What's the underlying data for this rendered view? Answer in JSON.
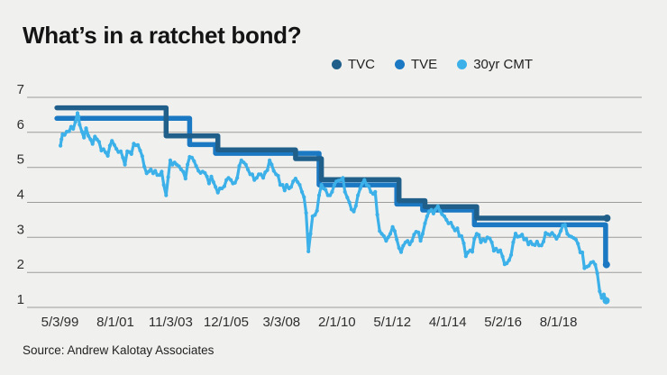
{
  "header": {
    "title": "What’s in a ratchet bond?"
  },
  "legend": {
    "items": [
      {
        "label": "TVC",
        "color": "#1f5f8a"
      },
      {
        "label": "TVE",
        "color": "#1b78c2"
      },
      {
        "label": "30yr CMT",
        "color": "#3cb0e8"
      }
    ]
  },
  "source": {
    "label": "Source: Andrew Kalotay Associates"
  },
  "chart_data": {
    "type": "line",
    "title": "What’s in a ratchet bond?",
    "source": "Source: Andrew Kalotay Associates",
    "xlabel": "",
    "ylabel": "",
    "grid": true,
    "grid_color": "#9c9c9a",
    "legend_position": "top-right",
    "ylim": [
      1,
      7
    ],
    "yticks": [
      7,
      6,
      5,
      4,
      3,
      2,
      1
    ],
    "x_tick_labels": [
      "5/3/99",
      "8/1/01",
      "11/3/03",
      "12/1/05",
      "3/3/08",
      "2/1/10",
      "5/1/12",
      "4/1/14",
      "5/2/16",
      "8/1/18"
    ],
    "x_units": "date (decimal years)",
    "y_units": "percent",
    "series": [
      {
        "name": "TVC",
        "type": "step",
        "color": "#1f5f8a",
        "line_width": 5.5,
        "end": 2020.45,
        "end_dot": true,
        "points": [
          [
            1999.2,
            6.7
          ],
          [
            2003.42,
            5.9
          ],
          [
            2005.42,
            5.5
          ],
          [
            2008.42,
            5.25
          ],
          [
            2009.42,
            4.65
          ],
          [
            2012.42,
            4.05
          ],
          [
            2013.42,
            3.88
          ],
          [
            2015.42,
            3.55
          ]
        ]
      },
      {
        "name": "TVE",
        "type": "step",
        "color": "#1b78c2",
        "line_width": 5.5,
        "end": 2020.43,
        "end_dot": true,
        "points": [
          [
            1999.2,
            6.4
          ],
          [
            2004.33,
            5.65
          ],
          [
            2005.33,
            5.4
          ],
          [
            2009.33,
            4.5
          ],
          [
            2012.33,
            3.95
          ],
          [
            2013.33,
            3.78
          ],
          [
            2015.33,
            3.36
          ],
          [
            2020.4,
            2.22
          ]
        ]
      },
      {
        "name": "30yr CMT",
        "type": "line",
        "color": "#3cb0e8",
        "line_width": 3.2,
        "markers": true,
        "end_dot": true,
        "points": [
          [
            1999.34,
            5.62
          ],
          [
            1999.38,
            5.8
          ],
          [
            1999.42,
            5.95
          ],
          [
            1999.5,
            5.93
          ],
          [
            1999.58,
            6.02
          ],
          [
            1999.67,
            6.03
          ],
          [
            1999.75,
            6.16
          ],
          [
            1999.83,
            6.1
          ],
          [
            1999.92,
            6.3
          ],
          [
            2000.0,
            6.55
          ],
          [
            2000.04,
            6.45
          ],
          [
            2000.08,
            6.22
          ],
          [
            2000.17,
            6.02
          ],
          [
            2000.25,
            5.85
          ],
          [
            2000.33,
            6.12
          ],
          [
            2000.42,
            5.9
          ],
          [
            2000.5,
            5.8
          ],
          [
            2000.58,
            5.67
          ],
          [
            2000.67,
            5.88
          ],
          [
            2000.75,
            5.8
          ],
          [
            2000.83,
            5.73
          ],
          [
            2000.92,
            5.48
          ],
          [
            2001.0,
            5.52
          ],
          [
            2001.08,
            5.43
          ],
          [
            2001.17,
            5.33
          ],
          [
            2001.25,
            5.62
          ],
          [
            2001.33,
            5.76
          ],
          [
            2001.42,
            5.64
          ],
          [
            2001.5,
            5.53
          ],
          [
            2001.58,
            5.44
          ],
          [
            2001.67,
            5.46
          ],
          [
            2001.75,
            5.28
          ],
          [
            2001.83,
            5.08
          ],
          [
            2001.92,
            5.46
          ],
          [
            2002.0,
            5.44
          ],
          [
            2002.08,
            5.38
          ],
          [
            2002.17,
            5.68
          ],
          [
            2002.25,
            5.63
          ],
          [
            2002.33,
            5.64
          ],
          [
            2002.42,
            5.48
          ],
          [
            2002.5,
            5.32
          ],
          [
            2002.58,
            5.02
          ],
          [
            2002.67,
            4.83
          ],
          [
            2002.75,
            4.88
          ],
          [
            2002.83,
            4.94
          ],
          [
            2002.92,
            4.83
          ],
          [
            2003.0,
            4.9
          ],
          [
            2003.08,
            4.78
          ],
          [
            2003.17,
            4.78
          ],
          [
            2003.25,
            4.88
          ],
          [
            2003.33,
            4.5
          ],
          [
            2003.42,
            4.2
          ],
          [
            2003.5,
            4.72
          ],
          [
            2003.58,
            5.2
          ],
          [
            2003.67,
            5.08
          ],
          [
            2003.75,
            5.14
          ],
          [
            2003.83,
            5.08
          ],
          [
            2003.92,
            5.03
          ],
          [
            2004.0,
            4.94
          ],
          [
            2004.08,
            4.88
          ],
          [
            2004.17,
            4.68
          ],
          [
            2004.25,
            5.08
          ],
          [
            2004.33,
            5.3
          ],
          [
            2004.42,
            5.28
          ],
          [
            2004.5,
            5.18
          ],
          [
            2004.58,
            5.04
          ],
          [
            2004.67,
            4.9
          ],
          [
            2004.75,
            4.84
          ],
          [
            2004.83,
            4.88
          ],
          [
            2004.92,
            4.84
          ],
          [
            2005.0,
            4.74
          ],
          [
            2005.08,
            4.54
          ],
          [
            2005.17,
            4.74
          ],
          [
            2005.25,
            4.58
          ],
          [
            2005.33,
            4.44
          ],
          [
            2005.42,
            4.28
          ],
          [
            2005.5,
            4.4
          ],
          [
            2005.58,
            4.4
          ],
          [
            2005.67,
            4.46
          ],
          [
            2005.75,
            4.64
          ],
          [
            2005.83,
            4.7
          ],
          [
            2005.92,
            4.64
          ],
          [
            2006.0,
            4.54
          ],
          [
            2006.08,
            4.56
          ],
          [
            2006.17,
            4.7
          ],
          [
            2006.25,
            5.04
          ],
          [
            2006.33,
            5.2
          ],
          [
            2006.42,
            5.14
          ],
          [
            2006.5,
            5.08
          ],
          [
            2006.58,
            4.94
          ],
          [
            2006.67,
            4.8
          ],
          [
            2006.75,
            4.8
          ],
          [
            2006.83,
            4.64
          ],
          [
            2006.92,
            4.7
          ],
          [
            2007.0,
            4.8
          ],
          [
            2007.08,
            4.8
          ],
          [
            2007.17,
            4.7
          ],
          [
            2007.25,
            4.86
          ],
          [
            2007.33,
            4.92
          ],
          [
            2007.42,
            5.2
          ],
          [
            2007.5,
            5.08
          ],
          [
            2007.58,
            4.9
          ],
          [
            2007.67,
            4.8
          ],
          [
            2007.75,
            4.76
          ],
          [
            2007.83,
            4.5
          ],
          [
            2007.92,
            4.5
          ],
          [
            2008.0,
            4.34
          ],
          [
            2008.08,
            4.5
          ],
          [
            2008.17,
            4.4
          ],
          [
            2008.25,
            4.44
          ],
          [
            2008.33,
            4.6
          ],
          [
            2008.42,
            4.68
          ],
          [
            2008.5,
            4.58
          ],
          [
            2008.58,
            4.5
          ],
          [
            2008.67,
            4.3
          ],
          [
            2008.75,
            4.15
          ],
          [
            2008.83,
            3.7
          ],
          [
            2008.92,
            2.6
          ],
          [
            2009.0,
            3.1
          ],
          [
            2009.08,
            3.6
          ],
          [
            2009.17,
            3.64
          ],
          [
            2009.25,
            3.76
          ],
          [
            2009.33,
            4.2
          ],
          [
            2009.42,
            4.5
          ],
          [
            2009.5,
            4.4
          ],
          [
            2009.58,
            4.36
          ],
          [
            2009.67,
            4.2
          ],
          [
            2009.75,
            4.2
          ],
          [
            2009.83,
            4.3
          ],
          [
            2009.92,
            4.5
          ],
          [
            2010.0,
            4.6
          ],
          [
            2010.08,
            4.62
          ],
          [
            2010.17,
            4.64
          ],
          [
            2010.25,
            4.7
          ],
          [
            2010.33,
            4.3
          ],
          [
            2010.42,
            4.14
          ],
          [
            2010.5,
            4.0
          ],
          [
            2010.58,
            3.8
          ],
          [
            2010.67,
            3.74
          ],
          [
            2010.75,
            3.9
          ],
          [
            2010.83,
            4.2
          ],
          [
            2010.92,
            4.4
          ],
          [
            2011.0,
            4.54
          ],
          [
            2011.08,
            4.64
          ],
          [
            2011.17,
            4.5
          ],
          [
            2011.25,
            4.46
          ],
          [
            2011.33,
            4.3
          ],
          [
            2011.42,
            4.24
          ],
          [
            2011.5,
            4.3
          ],
          [
            2011.58,
            3.65
          ],
          [
            2011.67,
            3.18
          ],
          [
            2011.75,
            3.1
          ],
          [
            2011.83,
            3.04
          ],
          [
            2011.92,
            2.9
          ],
          [
            2012.0,
            3.0
          ],
          [
            2012.08,
            3.1
          ],
          [
            2012.17,
            3.3
          ],
          [
            2012.25,
            3.18
          ],
          [
            2012.33,
            2.94
          ],
          [
            2012.42,
            2.7
          ],
          [
            2012.5,
            2.58
          ],
          [
            2012.58,
            2.76
          ],
          [
            2012.67,
            2.86
          ],
          [
            2012.75,
            2.9
          ],
          [
            2012.83,
            2.8
          ],
          [
            2012.92,
            2.9
          ],
          [
            2013.0,
            3.08
          ],
          [
            2013.08,
            3.16
          ],
          [
            2013.17,
            3.14
          ],
          [
            2013.25,
            2.9
          ],
          [
            2013.33,
            3.1
          ],
          [
            2013.42,
            3.4
          ],
          [
            2013.5,
            3.6
          ],
          [
            2013.58,
            3.74
          ],
          [
            2013.67,
            3.79
          ],
          [
            2013.75,
            3.68
          ],
          [
            2013.83,
            3.8
          ],
          [
            2013.92,
            3.89
          ],
          [
            2014.0,
            3.76
          ],
          [
            2014.08,
            3.66
          ],
          [
            2014.17,
            3.6
          ],
          [
            2014.25,
            3.5
          ],
          [
            2014.33,
            3.4
          ],
          [
            2014.42,
            3.42
          ],
          [
            2014.5,
            3.3
          ],
          [
            2014.58,
            3.2
          ],
          [
            2014.67,
            3.26
          ],
          [
            2014.75,
            3.04
          ],
          [
            2014.83,
            3.04
          ],
          [
            2014.92,
            2.83
          ],
          [
            2015.0,
            2.46
          ],
          [
            2015.08,
            2.57
          ],
          [
            2015.17,
            2.63
          ],
          [
            2015.25,
            2.59
          ],
          [
            2015.33,
            2.96
          ],
          [
            2015.42,
            3.1
          ],
          [
            2015.5,
            3.07
          ],
          [
            2015.58,
            2.86
          ],
          [
            2015.67,
            2.95
          ],
          [
            2015.75,
            2.89
          ],
          [
            2015.83,
            3.0
          ],
          [
            2015.92,
            2.97
          ],
          [
            2016.0,
            2.86
          ],
          [
            2016.08,
            2.62
          ],
          [
            2016.17,
            2.68
          ],
          [
            2016.25,
            2.59
          ],
          [
            2016.33,
            2.63
          ],
          [
            2016.42,
            2.45
          ],
          [
            2016.5,
            2.23
          ],
          [
            2016.58,
            2.26
          ],
          [
            2016.67,
            2.35
          ],
          [
            2016.75,
            2.5
          ],
          [
            2016.83,
            2.86
          ],
          [
            2016.92,
            3.11
          ],
          [
            2017.0,
            3.02
          ],
          [
            2017.08,
            3.03
          ],
          [
            2017.17,
            3.08
          ],
          [
            2017.25,
            2.94
          ],
          [
            2017.33,
            2.96
          ],
          [
            2017.42,
            2.8
          ],
          [
            2017.5,
            2.88
          ],
          [
            2017.58,
            2.8
          ],
          [
            2017.67,
            2.78
          ],
          [
            2017.75,
            2.88
          ],
          [
            2017.83,
            2.77
          ],
          [
            2017.92,
            2.77
          ],
          [
            2018.0,
            2.88
          ],
          [
            2018.08,
            3.13
          ],
          [
            2018.17,
            3.09
          ],
          [
            2018.25,
            3.07
          ],
          [
            2018.33,
            3.13
          ],
          [
            2018.42,
            3.05
          ],
          [
            2018.5,
            2.96
          ],
          [
            2018.58,
            3.04
          ],
          [
            2018.67,
            3.19
          ],
          [
            2018.75,
            3.34
          ],
          [
            2018.83,
            3.36
          ],
          [
            2018.92,
            3.1
          ],
          [
            2019.0,
            3.04
          ],
          [
            2019.08,
            3.02
          ],
          [
            2019.17,
            2.98
          ],
          [
            2019.25,
            2.94
          ],
          [
            2019.33,
            2.82
          ],
          [
            2019.42,
            2.57
          ],
          [
            2019.5,
            2.57
          ],
          [
            2019.58,
            2.12
          ],
          [
            2019.67,
            2.16
          ],
          [
            2019.75,
            2.19
          ],
          [
            2019.83,
            2.28
          ],
          [
            2019.92,
            2.3
          ],
          [
            2020.0,
            2.22
          ],
          [
            2020.08,
            1.97
          ],
          [
            2020.17,
            1.46
          ],
          [
            2020.25,
            1.27
          ],
          [
            2020.33,
            1.37
          ],
          [
            2020.42,
            1.19
          ]
        ]
      }
    ]
  }
}
